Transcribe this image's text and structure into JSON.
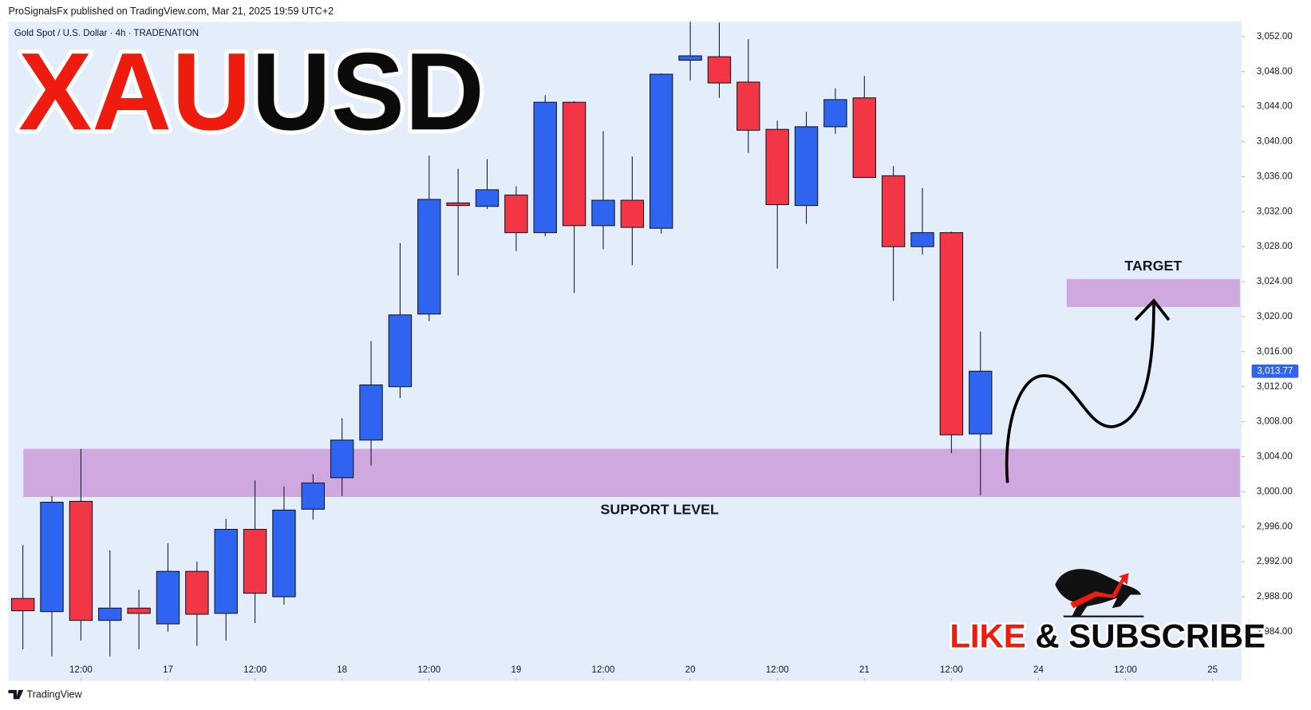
{
  "chart_data": {
    "type": "candlestick",
    "header": "ProSignalsFx published on TradingView.com, Mar 21, 2025 19:59 UTC+2",
    "subtitle": "Gold Spot / U.S. Dollar · 4h · TRADENATION",
    "title_parts": [
      "XAU",
      "USD"
    ],
    "title_colors": [
      "#ee1c0e",
      "#0b0b0b"
    ],
    "cta_parts": [
      "LIKE",
      "& SUBSCRIBE"
    ],
    "cta_colors": [
      "#ee1c0e",
      "#0b0b0b"
    ],
    "footer": "TradingView",
    "up_color": "#2e64f0",
    "down_color": "#f23645",
    "x": [
      0,
      1,
      2,
      3,
      4,
      5,
      6,
      7,
      8,
      9,
      10,
      11,
      12,
      13,
      14,
      15,
      16,
      17,
      18,
      19,
      20,
      21,
      22,
      23,
      24,
      25,
      26,
      27,
      28,
      29,
      30,
      31,
      32,
      33
    ],
    "open": [
      2987.8,
      2986.3,
      2998.9,
      2985.3,
      2986.7,
      2984.9,
      2990.9,
      2986.1,
      2995.7,
      2988.0,
      2998.0,
      3001.6,
      3005.9,
      3012.0,
      3020.3,
      3033.0,
      3032.6,
      3033.9,
      3029.6,
      3044.5,
      3030.4,
      3033.3,
      3030.1,
      3049.3,
      3049.7,
      3046.8,
      3041.4,
      3032.7,
      3041.7,
      3045.0,
      3036.1,
      3028.0,
      3029.6,
      3006.6
    ],
    "high": [
      2993.9,
      2999.5,
      3004.9,
      2993.3,
      2988.8,
      2994.1,
      2992.0,
      2996.9,
      3001.3,
      3000.6,
      3002.0,
      3008.4,
      3017.2,
      3028.4,
      3038.4,
      3036.9,
      3038.0,
      3034.9,
      3045.3,
      3044.6,
      3041.2,
      3038.3,
      3047.8,
      3053.7,
      3053.6,
      3051.7,
      3042.4,
      3043.4,
      3046.1,
      3047.5,
      3037.2,
      3034.7,
      3029.7,
      3018.3
    ],
    "low": [
      2982.0,
      2981.2,
      2983.0,
      2981.2,
      2982.0,
      2984.0,
      2982.4,
      2983.0,
      2985.0,
      2987.1,
      2996.8,
      2999.5,
      3003.0,
      3010.7,
      3019.5,
      3024.7,
      3032.3,
      3027.5,
      3029.2,
      3022.7,
      3027.7,
      3025.9,
      3029.5,
      3047.0,
      3045.0,
      3038.7,
      3025.5,
      3030.6,
      3040.9,
      3035.9,
      3021.8,
      3027.1,
      3004.4,
      2999.6
    ],
    "close": [
      2986.4,
      2998.8,
      2985.3,
      2986.7,
      2986.1,
      2990.9,
      2986.0,
      2995.7,
      2988.4,
      2997.9,
      3001.0,
      3005.9,
      3012.2,
      3020.2,
      3033.4,
      3032.7,
      3034.5,
      3029.6,
      3044.5,
      3030.4,
      3033.3,
      3030.2,
      3047.7,
      3049.8,
      3046.7,
      3041.3,
      3032.8,
      3041.7,
      3044.8,
      3035.9,
      3028.0,
      3029.6,
      3006.5,
      3013.77
    ],
    "last_price": {
      "value": 3013.77,
      "label": "3,013.77"
    },
    "zones": [
      {
        "label": "SUPPORT LEVEL",
        "range": [
          2999.4,
          3004.9
        ],
        "color": "#cfa8e0"
      },
      {
        "label": "TARGET",
        "range": [
          3021.1,
          3024.3
        ],
        "color": "#cfa8e0"
      }
    ],
    "xlim": [
      -0.5,
      42
    ],
    "xticks": [
      {
        "value": 2,
        "label": "12:00"
      },
      {
        "value": 5,
        "label": "17"
      },
      {
        "value": 8,
        "label": "12:00"
      },
      {
        "value": 11,
        "label": "18"
      },
      {
        "value": 14,
        "label": "12:00"
      },
      {
        "value": 17,
        "label": "19"
      },
      {
        "value": 20,
        "label": "12:00"
      },
      {
        "value": 23,
        "label": "20"
      },
      {
        "value": 26,
        "label": "12:00"
      },
      {
        "value": 29,
        "label": "21"
      },
      {
        "value": 32,
        "label": "12:00"
      },
      {
        "value": 35,
        "label": "24"
      },
      {
        "value": 38,
        "label": "12:00"
      },
      {
        "value": 41,
        "label": "25"
      }
    ],
    "ylim": [
      2978.4,
      3053.7
    ],
    "yticks": [
      {
        "value": 2984,
        "label": "2,984.00"
      },
      {
        "value": 2988,
        "label": "2,988.00"
      },
      {
        "value": 2992,
        "label": "2,992.00"
      },
      {
        "value": 2996,
        "label": "2,996.00"
      },
      {
        "value": 3000,
        "label": "3,000.00"
      },
      {
        "value": 3004,
        "label": "3,004.00"
      },
      {
        "value": 3008,
        "label": "3,008.00"
      },
      {
        "value": 3012,
        "label": "3,012.00"
      },
      {
        "value": 3016,
        "label": "3,016.00"
      },
      {
        "value": 3020,
        "label": "3,020.00"
      },
      {
        "value": 3024,
        "label": "3,024.00"
      },
      {
        "value": 3028,
        "label": "3,028.00"
      },
      {
        "value": 3032,
        "label": "3,032.00"
      },
      {
        "value": 3036,
        "label": "3,036.00"
      },
      {
        "value": 3040,
        "label": "3,040.00"
      },
      {
        "value": 3044,
        "label": "3,044.00"
      },
      {
        "value": 3048,
        "label": "3,048.00"
      },
      {
        "value": 3052,
        "label": "3,052.00"
      }
    ],
    "background": "#e3eefa"
  }
}
